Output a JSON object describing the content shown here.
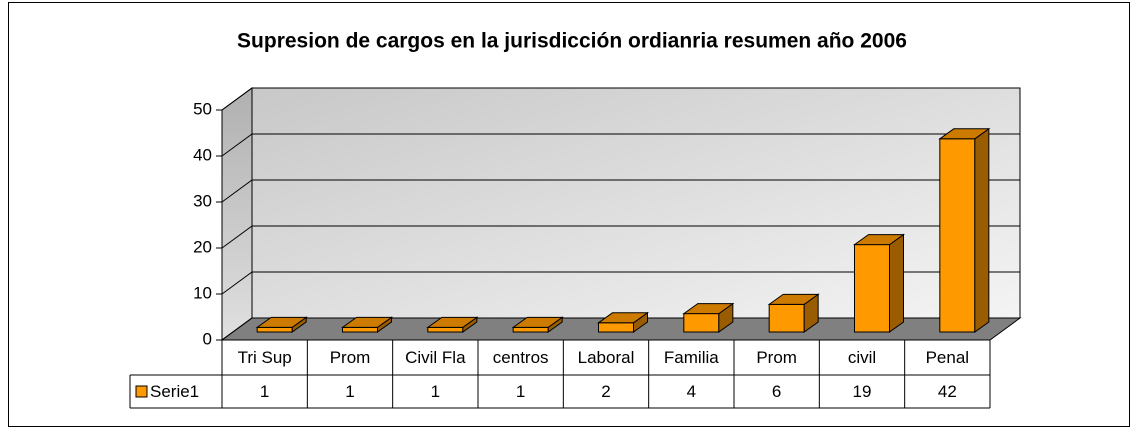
{
  "chart_data": {
    "type": "bar",
    "title": "Supresion de cargos en la jurisdicción ordianria resumen año 2006",
    "categories": [
      "Tri Sup",
      "Prom",
      "Civil Fla",
      "centros",
      "Laboral",
      "Familia",
      "Prom",
      "civil",
      "Penal"
    ],
    "series": [
      {
        "name": "Serie1",
        "color": "#FF9900",
        "values": [
          1,
          1,
          1,
          1,
          2,
          4,
          6,
          19,
          42
        ]
      }
    ],
    "ylim": [
      0,
      50
    ],
    "yticks": [
      0,
      10,
      20,
      30,
      40,
      50
    ],
    "grid": true,
    "legend": "data-table"
  }
}
